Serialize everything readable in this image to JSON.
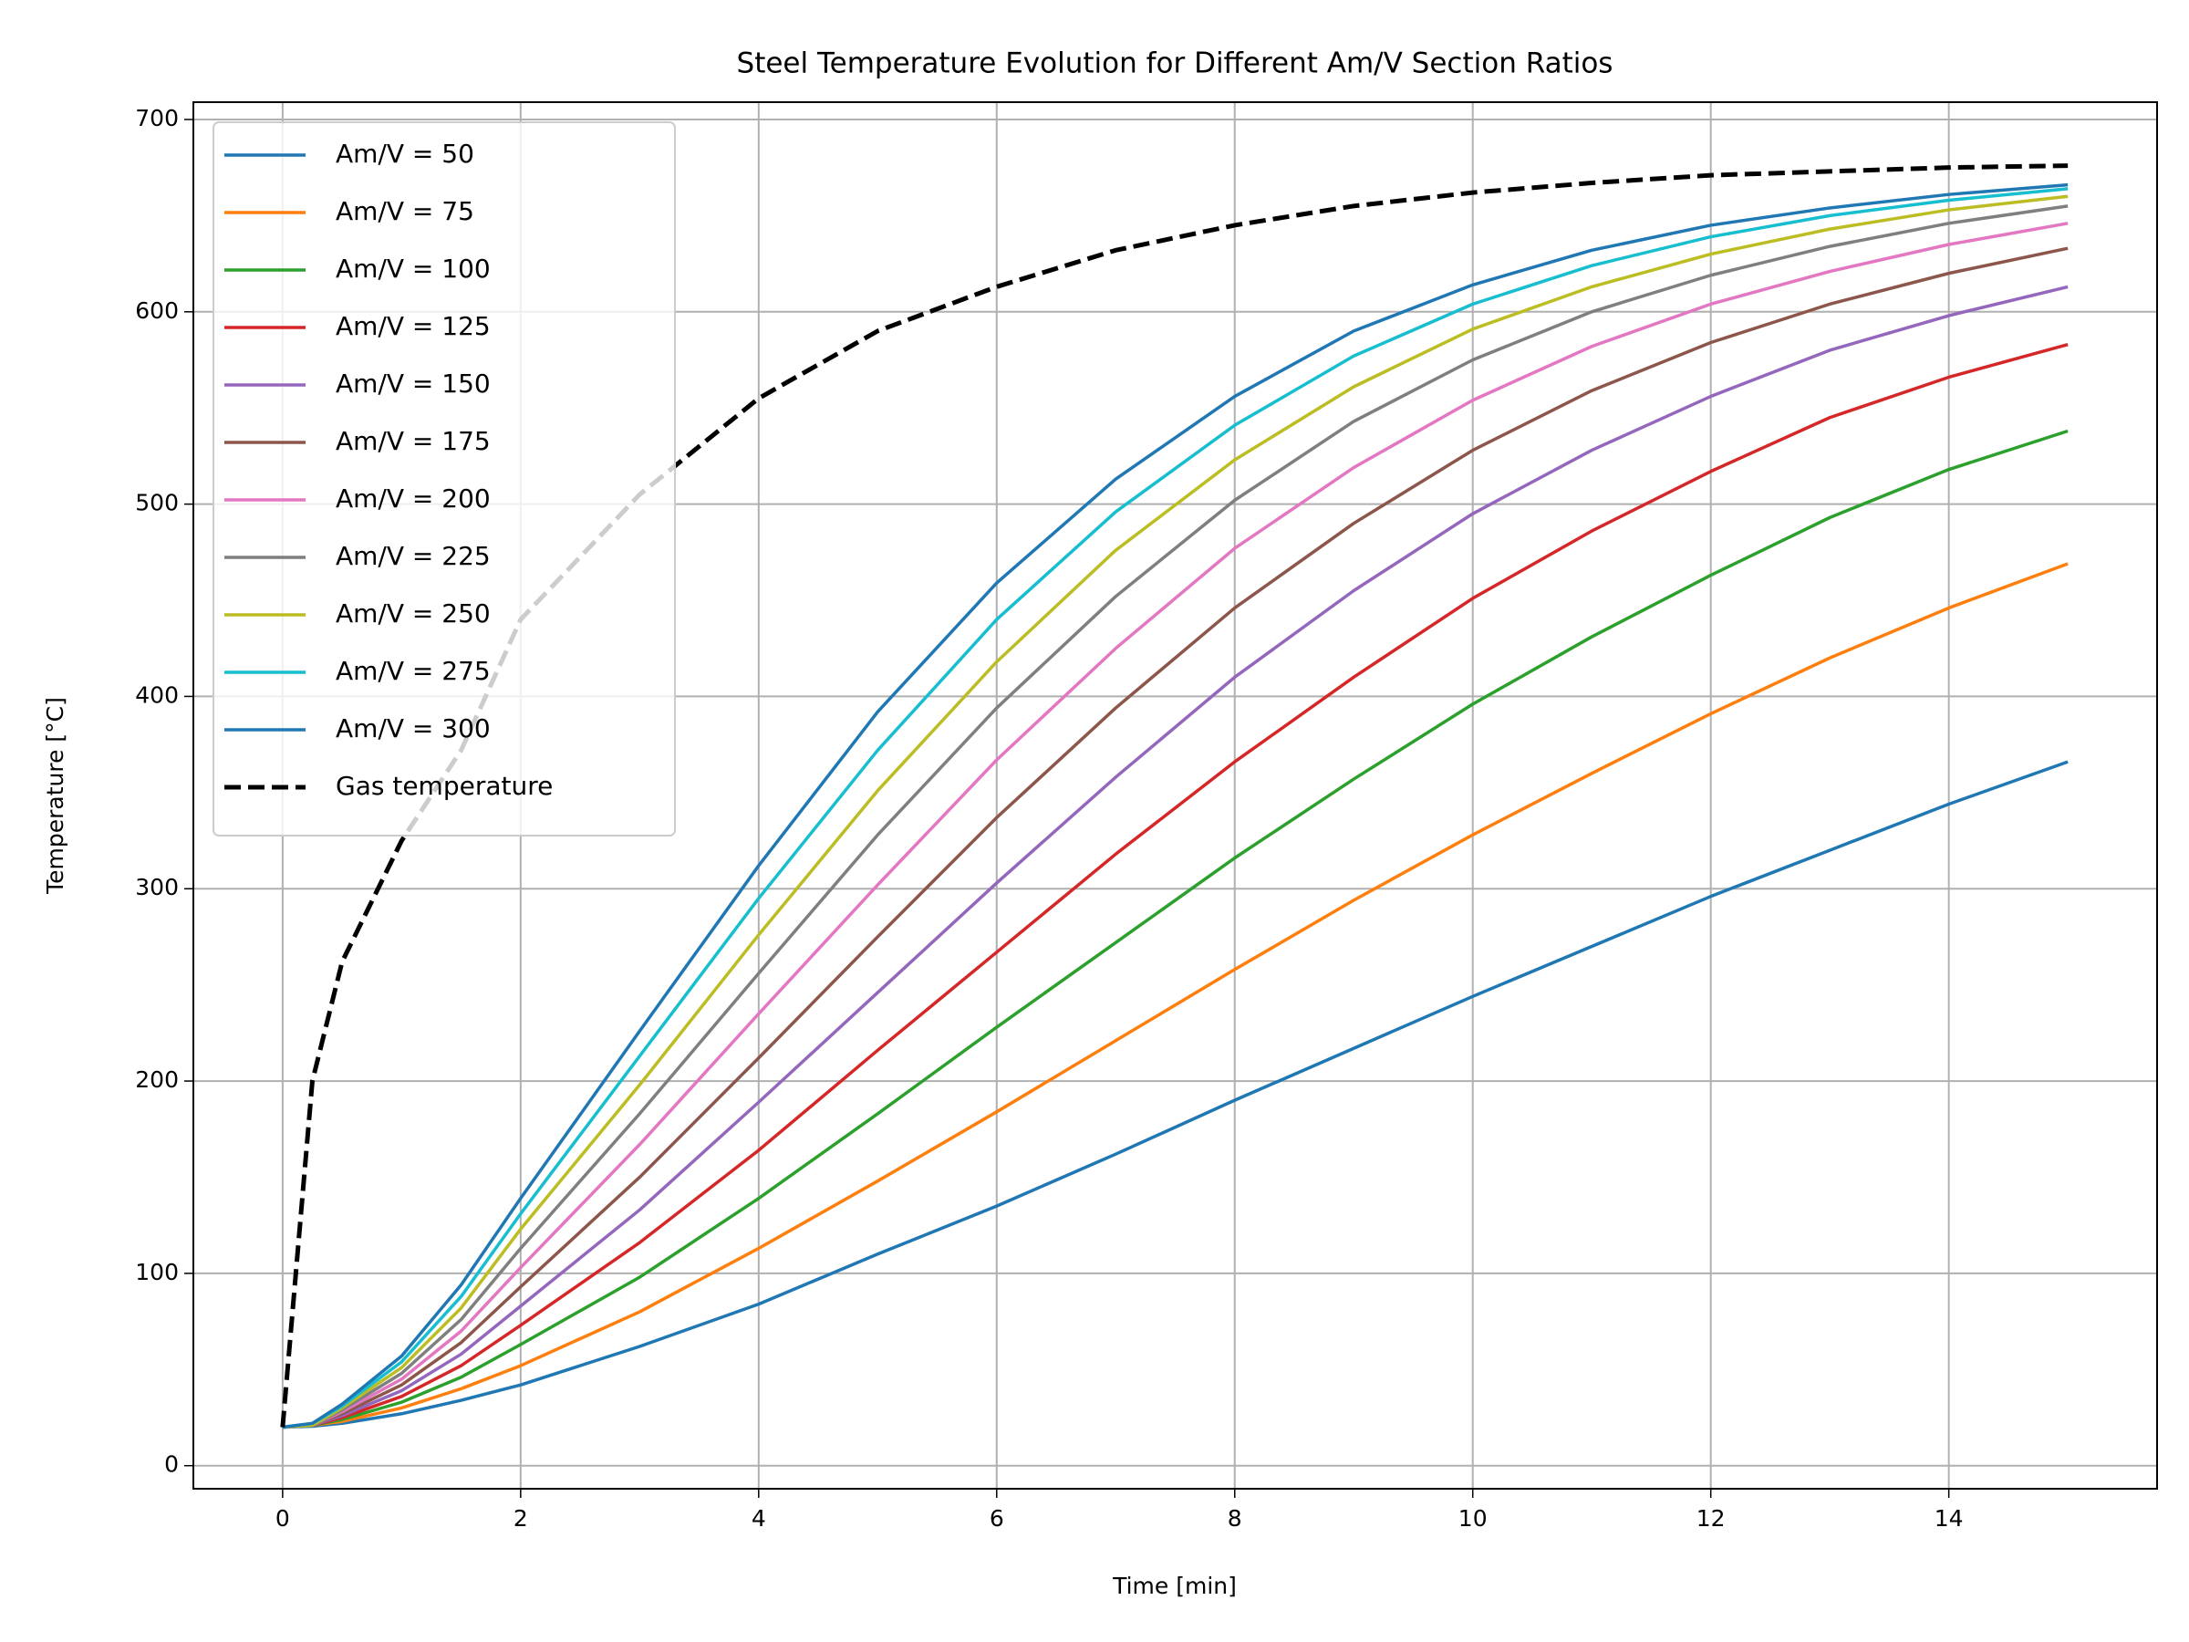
{
  "chart_data": {
    "type": "line",
    "title": "Steel Temperature Evolution for Different Am/V Section Ratios",
    "x_label": "Time [min]",
    "y_label": "Temperature [°C]",
    "x": [
      0,
      0.25,
      0.5,
      1,
      1.5,
      2,
      3,
      4,
      5,
      6,
      7,
      8,
      9,
      10,
      11,
      12,
      13,
      14,
      15
    ],
    "series": [
      {
        "name": "Am/V = 50",
        "color": "#1f77b4",
        "values": [
          20,
          20.5,
          22,
          27,
          34,
          42,
          62,
          84,
          110,
          135,
          162,
          190,
          217,
          244,
          270,
          296,
          320,
          344,
          366
        ]
      },
      {
        "name": "Am/V = 75",
        "color": "#ff7f0e",
        "values": [
          20,
          21,
          23,
          30,
          40,
          52,
          80,
          113,
          148,
          184,
          221,
          258,
          294,
          328,
          360,
          391,
          420,
          446,
          469
        ]
      },
      {
        "name": "Am/V = 100",
        "color": "#2ca02c",
        "values": [
          20,
          21,
          24,
          33,
          46,
          63,
          98,
          139,
          183,
          228,
          272,
          316,
          357,
          396,
          431,
          463,
          493,
          518,
          538
        ]
      },
      {
        "name": "Am/V = 125",
        "color": "#d62728",
        "values": [
          20,
          21,
          25,
          36,
          52,
          73,
          116,
          164,
          216,
          267,
          318,
          366,
          410,
          451,
          486,
          517,
          545,
          566,
          583
        ]
      },
      {
        "name": "Am/V = 150",
        "color": "#9467bd",
        "values": [
          20,
          21,
          26,
          39,
          58,
          83,
          133,
          189,
          246,
          303,
          358,
          410,
          455,
          495,
          528,
          556,
          580,
          598,
          613
        ]
      },
      {
        "name": "Am/V = 175",
        "color": "#8c564b",
        "values": [
          20,
          21,
          27,
          42,
          64,
          93,
          150,
          212,
          275,
          337,
          394,
          446,
          490,
          528,
          559,
          584,
          604,
          620,
          633
        ]
      },
      {
        "name": "Am/V = 200",
        "color": "#e377c2",
        "values": [
          20,
          21,
          28,
          45,
          70,
          103,
          167,
          235,
          302,
          367,
          425,
          477,
          519,
          554,
          582,
          604,
          621,
          635,
          646
        ]
      },
      {
        "name": "Am/V = 225",
        "color": "#7f7f7f",
        "values": [
          20,
          21,
          29,
          48,
          76,
          113,
          183,
          256,
          328,
          394,
          452,
          502,
          543,
          575,
          600,
          619,
          634,
          646,
          655
        ]
      },
      {
        "name": "Am/V = 250",
        "color": "#bcbd22",
        "values": [
          20,
          21,
          30,
          51,
          82,
          123,
          198,
          276,
          351,
          418,
          476,
          523,
          561,
          591,
          613,
          630,
          643,
          653,
          660
        ]
      },
      {
        "name": "Am/V = 275",
        "color": "#17becf",
        "values": [
          20,
          22,
          31,
          54,
          88,
          131,
          213,
          295,
          372,
          440,
          496,
          541,
          577,
          604,
          624,
          639,
          650,
          658,
          664
        ]
      },
      {
        "name": "Am/V = 300",
        "color": "#1f77b4",
        "values": [
          20,
          22,
          32,
          57,
          94,
          139,
          226,
          312,
          392,
          459,
          513,
          556,
          590,
          614,
          632,
          645,
          654,
          661,
          666
        ]
      },
      {
        "name": "Gas temperature",
        "color": "#000000",
        "linestyle": "dashed",
        "values": [
          20,
          200,
          262,
          325,
          372,
          440,
          505,
          555,
          590,
          613,
          632,
          645,
          655,
          662,
          667,
          671,
          673,
          675,
          676
        ]
      }
    ],
    "xlim": [
      -0.75,
      15.75
    ],
    "ylim": [
      -12,
      709
    ],
    "xticks": [
      0,
      2,
      4,
      6,
      8,
      10,
      12,
      14
    ],
    "yticks": [
      0,
      100,
      200,
      300,
      400,
      500,
      600,
      700
    ],
    "grid": true,
    "legend": "upper left"
  }
}
